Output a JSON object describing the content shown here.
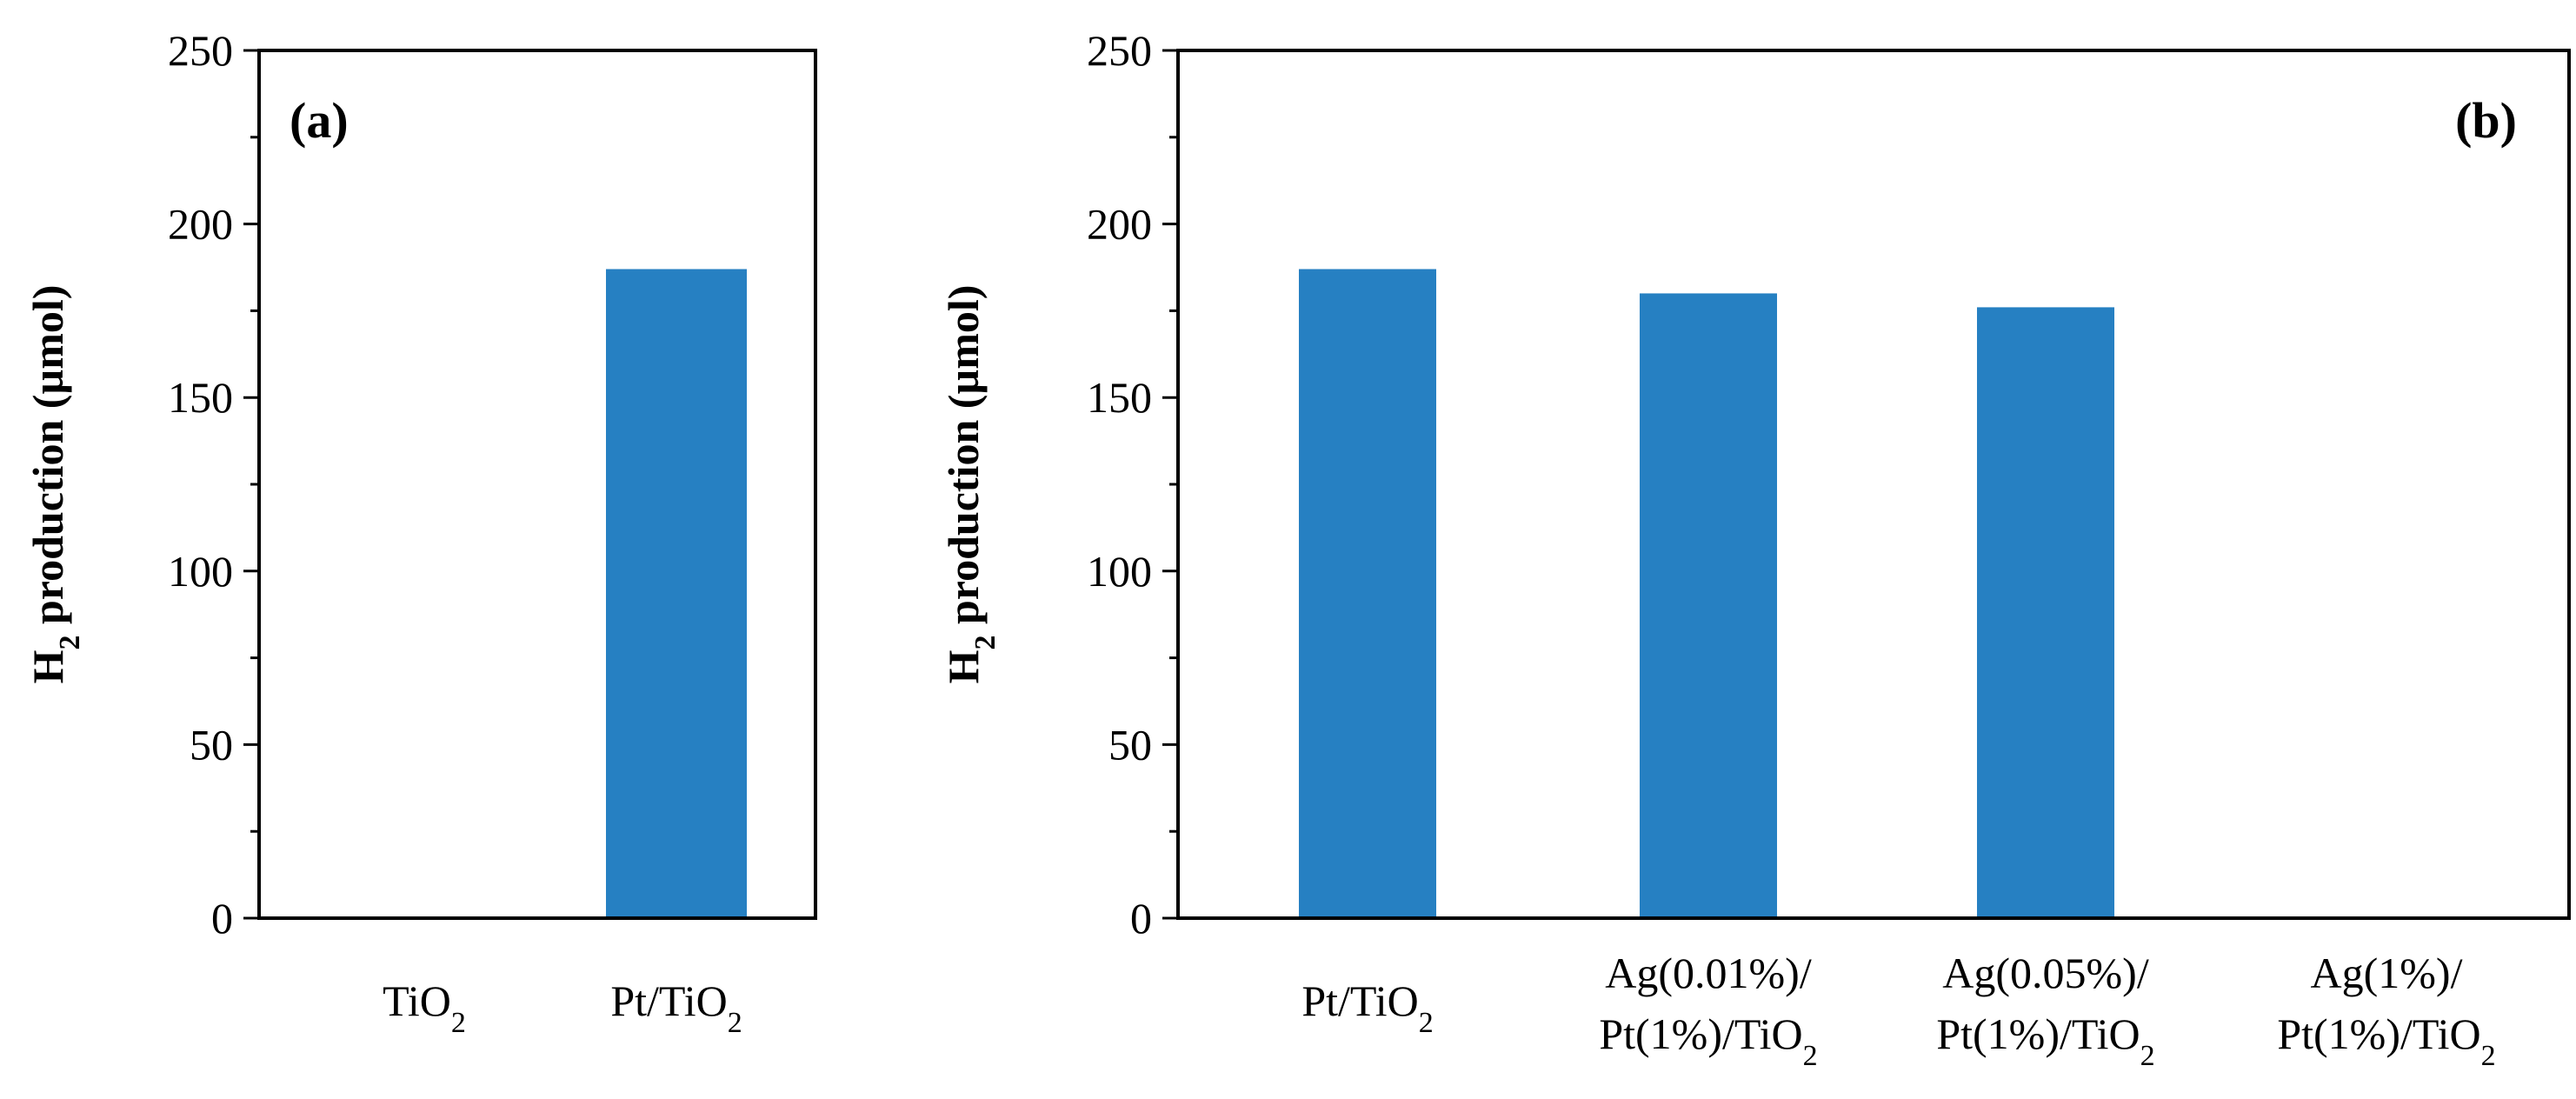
{
  "chart_data": [
    {
      "type": "bar",
      "panel_label": "(a)",
      "ylabel": "H₂ production (µmol)",
      "xlabel": "",
      "ylim": [
        0,
        250
      ],
      "yticks": [
        0,
        50,
        100,
        150,
        200,
        250
      ],
      "ytick_labels": [
        "0",
        "50",
        "100",
        "150",
        "200",
        "250"
      ],
      "grid": false,
      "bar_color": "#2680c2",
      "categories": [
        {
          "lines": [
            [
              {
                "t": "TiO",
                "sub": false
              },
              {
                "t": "2",
                "sub": true
              }
            ]
          ]
        },
        {
          "lines": [
            [
              {
                "t": "Pt/TiO",
                "sub": false
              },
              {
                "t": "2",
                "sub": true
              }
            ]
          ]
        }
      ],
      "values": [
        0,
        187
      ]
    },
    {
      "type": "bar",
      "panel_label": "(b)",
      "ylabel": "H₂ production (µmol)",
      "xlabel": "",
      "ylim": [
        0,
        250
      ],
      "yticks": [
        0,
        50,
        100,
        150,
        200,
        250
      ],
      "ytick_labels": [
        "0",
        "50",
        "100",
        "150",
        "200",
        "250"
      ],
      "grid": false,
      "bar_color": "#2680c2",
      "categories": [
        {
          "lines": [
            [
              {
                "t": "Pt/TiO",
                "sub": false
              },
              {
                "t": "2",
                "sub": true
              }
            ]
          ]
        },
        {
          "lines": [
            [
              {
                "t": "Ag(0.01%)/",
                "sub": false
              }
            ],
            [
              {
                "t": "Pt(1%)/TiO",
                "sub": false
              },
              {
                "t": "2",
                "sub": true
              }
            ]
          ]
        },
        {
          "lines": [
            [
              {
                "t": "Ag(0.05%)/",
                "sub": false
              }
            ],
            [
              {
                "t": "Pt(1%)/TiO",
                "sub": false
              },
              {
                "t": "2",
                "sub": true
              }
            ]
          ]
        },
        {
          "lines": [
            [
              {
                "t": "Ag(1%)/",
                "sub": false
              }
            ],
            [
              {
                "t": "Pt(1%)/TiO",
                "sub": false
              },
              {
                "t": "2",
                "sub": true
              }
            ]
          ]
        }
      ],
      "values": [
        187,
        180,
        176,
        0
      ]
    }
  ]
}
